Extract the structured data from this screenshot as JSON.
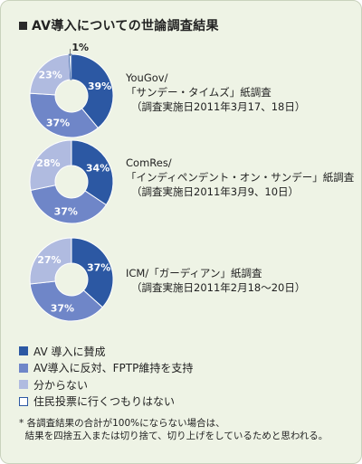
{
  "title": "AV導入についての世論調査結果",
  "colors": {
    "favor": "#2c58a3",
    "oppose": "#6f86c8",
    "unknown": "#b0bbe0",
    "wont_vote_border": "#2c58a3",
    "background": "#eef3e5"
  },
  "chart_data": [
    {
      "type": "pie",
      "donut": true,
      "categories": [
        "AV 導入に賛成",
        "AV導入に反対、FPTP維持を支持",
        "分からない",
        "住民投票に行くつもりはない"
      ],
      "values": [
        39,
        37,
        23,
        1
      ],
      "data_labels": [
        "39%",
        "37%",
        "23%",
        "1%"
      ],
      "source_line1": "YouGov/",
      "source_line2": "「サンデー・タイムズ」紙調査",
      "source_date": "（調査実施日2011年3月17、18日）"
    },
    {
      "type": "pie",
      "donut": true,
      "categories": [
        "AV 導入に賛成",
        "AV導入に反対、FPTP維持を支持",
        "分からない",
        "住民投票に行くつもりはない"
      ],
      "values": [
        34,
        37,
        28,
        0
      ],
      "data_labels": [
        "34%",
        "37%",
        "28%",
        ""
      ],
      "source_line1": "ComRes/",
      "source_line2": "「インディペンデント・オン・サンデー」紙調査",
      "source_date": "（調査実施日2011年3月9、10日）"
    },
    {
      "type": "pie",
      "donut": true,
      "categories": [
        "AV 導入に賛成",
        "AV導入に反対、FPTP維持を支持",
        "分からない",
        "住民投票に行くつもりはない"
      ],
      "values": [
        37,
        37,
        27,
        0
      ],
      "data_labels": [
        "37%",
        "37%",
        "27%",
        ""
      ],
      "source_line1": "ICM/「ガーディアン」紙調査",
      "source_line2": "",
      "source_date": "（調査実施日2011年2月18〜20日）"
    }
  ],
  "legend": [
    {
      "label": "AV 導入に賛成",
      "color": "#2c58a3",
      "outline": false
    },
    {
      "label": "AV導入に反対、FPTP維持を支持",
      "color": "#6f86c8",
      "outline": false
    },
    {
      "label": "分からない",
      "color": "#b0bbe0",
      "outline": false
    },
    {
      "label": "住民投票に行くつもりはない",
      "color": "#ffffff",
      "outline": true
    }
  ],
  "footnote": "* 各調査結果の合計が100%にならない場合は、\n  結果を四捨五入または切り捨て、切り上げをしているためと思われる。"
}
